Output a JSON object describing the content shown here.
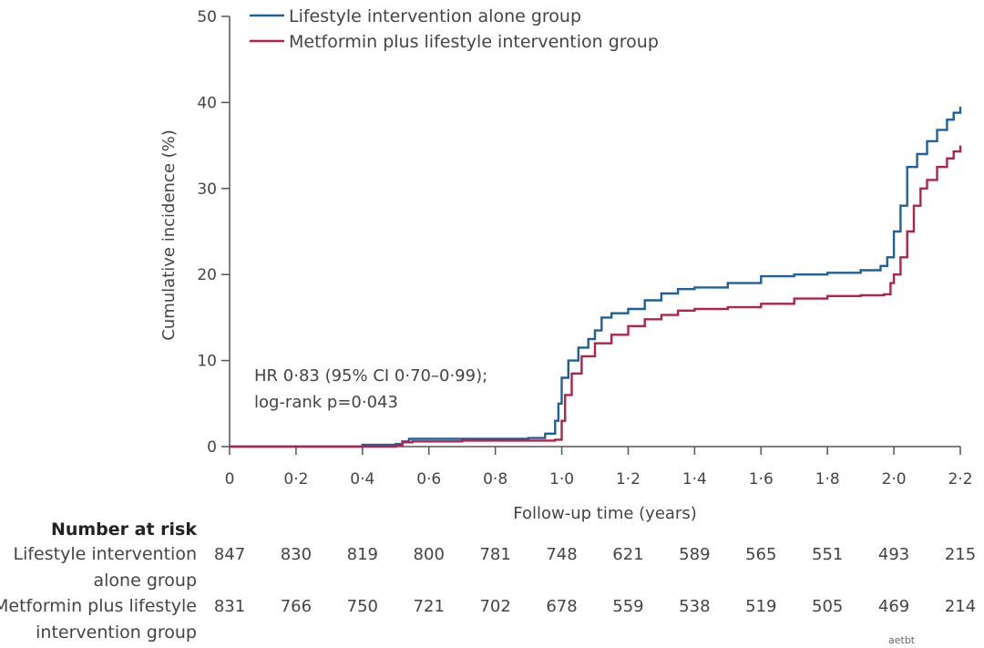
{
  "chart_data": {
    "type": "line",
    "subtype": "kaplan-meier-cumulative-incidence",
    "title": "",
    "xlabel": "Follow-up time (years)",
    "ylabel": "Cumulative incidence (%)",
    "xlim": [
      0,
      2.2
    ],
    "ylim": [
      0,
      50
    ],
    "x_ticks": [
      0,
      0.2,
      0.4,
      0.6,
      0.8,
      1.0,
      1.2,
      1.4,
      1.6,
      1.8,
      2.0,
      2.2
    ],
    "x_tick_labels": [
      "0",
      "0·2",
      "0·4",
      "0·6",
      "0·8",
      "1·0",
      "1·2",
      "1·4",
      "1·6",
      "1·8",
      "2·0",
      "2·2"
    ],
    "y_ticks": [
      0,
      10,
      20,
      30,
      40,
      50
    ],
    "y_tick_labels": [
      "0",
      "10",
      "20",
      "30",
      "40",
      "50"
    ],
    "legend_position": "top-left",
    "series": [
      {
        "name": "Lifestyle intervention alone group",
        "color": "#1f5f9a",
        "points": [
          [
            0,
            0
          ],
          [
            0.38,
            0
          ],
          [
            0.4,
            0.2
          ],
          [
            0.5,
            0.3
          ],
          [
            0.52,
            0.6
          ],
          [
            0.54,
            0.9
          ],
          [
            0.6,
            0.9
          ],
          [
            0.9,
            1.0
          ],
          [
            0.95,
            1.5
          ],
          [
            0.98,
            3.0
          ],
          [
            0.99,
            5.0
          ],
          [
            1.0,
            8.0
          ],
          [
            1.02,
            10.0
          ],
          [
            1.05,
            11.5
          ],
          [
            1.08,
            12.5
          ],
          [
            1.1,
            13.5
          ],
          [
            1.12,
            15.0
          ],
          [
            1.15,
            15.5
          ],
          [
            1.2,
            16.0
          ],
          [
            1.25,
            17.0
          ],
          [
            1.3,
            17.8
          ],
          [
            1.35,
            18.3
          ],
          [
            1.4,
            18.5
          ],
          [
            1.5,
            19.0
          ],
          [
            1.6,
            19.8
          ],
          [
            1.7,
            20.0
          ],
          [
            1.8,
            20.2
          ],
          [
            1.9,
            20.5
          ],
          [
            1.96,
            21.0
          ],
          [
            1.98,
            22.0
          ],
          [
            2.0,
            25.0
          ],
          [
            2.02,
            28.0
          ],
          [
            2.04,
            32.5
          ],
          [
            2.07,
            34.0
          ],
          [
            2.1,
            35.5
          ],
          [
            2.13,
            36.8
          ],
          [
            2.16,
            38.0
          ],
          [
            2.18,
            38.8
          ],
          [
            2.2,
            39.5
          ]
        ]
      },
      {
        "name": "Metformin plus lifestyle intervention group",
        "color": "#b0234a",
        "points": [
          [
            0,
            0
          ],
          [
            0.4,
            0
          ],
          [
            0.5,
            0.1
          ],
          [
            0.52,
            0.5
          ],
          [
            0.55,
            0.6
          ],
          [
            0.7,
            0.7
          ],
          [
            0.85,
            0.7
          ],
          [
            0.98,
            0.8
          ],
          [
            1.0,
            3.0
          ],
          [
            1.01,
            6.0
          ],
          [
            1.03,
            8.5
          ],
          [
            1.06,
            10.5
          ],
          [
            1.1,
            12.0
          ],
          [
            1.15,
            13.0
          ],
          [
            1.2,
            14.0
          ],
          [
            1.25,
            14.8
          ],
          [
            1.3,
            15.3
          ],
          [
            1.35,
            15.8
          ],
          [
            1.4,
            16.0
          ],
          [
            1.5,
            16.2
          ],
          [
            1.6,
            16.6
          ],
          [
            1.7,
            17.2
          ],
          [
            1.8,
            17.5
          ],
          [
            1.9,
            17.6
          ],
          [
            1.97,
            17.7
          ],
          [
            1.99,
            19.0
          ],
          [
            2.0,
            20.0
          ],
          [
            2.02,
            22.0
          ],
          [
            2.04,
            25.0
          ],
          [
            2.06,
            28.0
          ],
          [
            2.08,
            30.0
          ],
          [
            2.1,
            31.0
          ],
          [
            2.13,
            32.5
          ],
          [
            2.16,
            33.5
          ],
          [
            2.18,
            34.3
          ],
          [
            2.2,
            35.0
          ]
        ]
      }
    ],
    "annotations": [
      "HR 0·83 (95% CI 0·70–0·99);",
      "log-rank p=0·043"
    ],
    "risk_table": {
      "header": "Number at risk",
      "rows": [
        {
          "label_lines": [
            "Lifestyle intervention",
            "alone group"
          ],
          "values": [
            "847",
            "830",
            "819",
            "800",
            "781",
            "748",
            "621",
            "589",
            "565",
            "551",
            "493",
            "215"
          ]
        },
        {
          "label_lines": [
            "Metformin plus lifestyle",
            "intervention group"
          ],
          "values": [
            "831",
            "766",
            "750",
            "721",
            "702",
            "678",
            "559",
            "538",
            "519",
            "505",
            "469",
            "214"
          ]
        }
      ]
    }
  },
  "watermark": "aetbt       "
}
